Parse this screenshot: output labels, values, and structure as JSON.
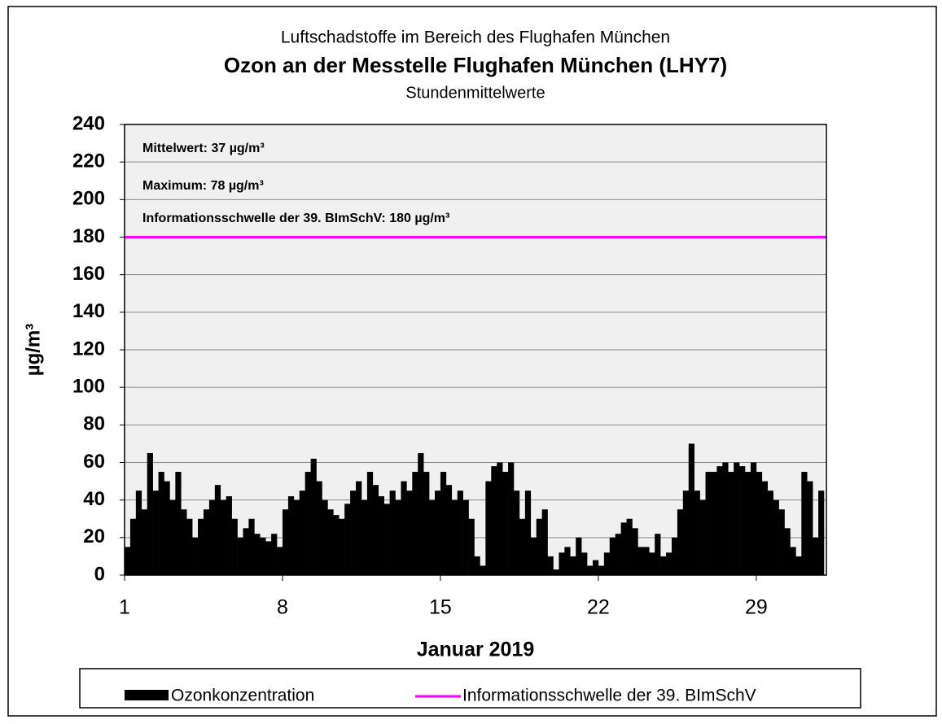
{
  "chart_data": {
    "type": "bar",
    "supertitle": "Luftschadstoffe im Bereich des Flughafen München",
    "title": "Ozon an der Messtelle Flughafen München (LHY7)",
    "subtitle": "Stundenmittelwerte",
    "y_label": "µg/m³",
    "x_label": "Januar 2019",
    "annotations": [
      "Mittelwert: 37 µg/m³",
      "Maximum: 78 µg/m³",
      "Informationsschwelle der 39. BImSchV: 180 µg/m³"
    ],
    "xlim": [
      1,
      32
    ],
    "xticks": [
      1,
      8,
      15,
      22,
      29
    ],
    "ylim": [
      0,
      240
    ],
    "yticks": [
      0,
      20,
      40,
      60,
      80,
      100,
      120,
      140,
      160,
      180,
      200,
      220,
      240
    ],
    "grid": true,
    "threshold": {
      "name": "Informationsschwelle der 39. BImSchV",
      "value": 180,
      "color": "#ff00ff"
    },
    "series": [
      {
        "name": "Ozonkonzentration",
        "color": "#000000",
        "x": [
          1,
          1.25,
          1.5,
          1.75,
          2,
          2.25,
          2.5,
          2.75,
          3,
          3.25,
          3.5,
          3.75,
          4,
          4.25,
          4.5,
          4.75,
          5,
          5.25,
          5.5,
          5.75,
          6,
          6.25,
          6.5,
          6.75,
          7,
          7.25,
          7.5,
          7.75,
          8,
          8.25,
          8.5,
          8.75,
          9,
          9.25,
          9.5,
          9.75,
          10,
          10.25,
          10.5,
          10.75,
          11,
          11.25,
          11.5,
          11.75,
          12,
          12.25,
          12.5,
          12.75,
          13,
          13.25,
          13.5,
          13.75,
          14,
          14.25,
          14.5,
          14.75,
          15,
          15.25,
          15.5,
          15.75,
          16,
          16.25,
          16.5,
          16.75,
          17,
          17.25,
          17.5,
          17.75,
          18,
          18.25,
          18.5,
          18.75,
          19,
          19.25,
          19.5,
          19.75,
          20,
          20.25,
          20.5,
          20.75,
          21,
          21.25,
          21.5,
          21.75,
          22,
          22.25,
          22.5,
          22.75,
          23,
          23.25,
          23.5,
          23.75,
          24,
          24.25,
          24.5,
          24.75,
          25,
          25.25,
          25.5,
          25.75,
          26,
          26.25,
          26.5,
          26.75,
          27,
          27.25,
          27.5,
          27.75,
          28,
          28.25,
          28.5,
          28.75,
          29,
          29.25,
          29.5,
          29.75,
          30,
          30.25,
          30.5,
          30.75,
          31,
          31.25,
          31.5,
          31.75
        ],
        "values": [
          15,
          30,
          45,
          35,
          65,
          45,
          55,
          50,
          40,
          55,
          35,
          30,
          20,
          30,
          35,
          40,
          48,
          40,
          42,
          30,
          20,
          25,
          30,
          22,
          20,
          18,
          22,
          15,
          35,
          42,
          40,
          45,
          55,
          62,
          50,
          40,
          35,
          32,
          30,
          38,
          45,
          50,
          40,
          55,
          48,
          42,
          38,
          45,
          40,
          50,
          45,
          55,
          65,
          55,
          40,
          45,
          55,
          48,
          40,
          45,
          40,
          30,
          10,
          5,
          50,
          58,
          60,
          55,
          60,
          45,
          30,
          45,
          20,
          30,
          35,
          10,
          3,
          12,
          15,
          10,
          20,
          12,
          5,
          8,
          5,
          12,
          20,
          22,
          28,
          30,
          25,
          15,
          15,
          12,
          22,
          10,
          12,
          20,
          35,
          45,
          70,
          45,
          40,
          55,
          55,
          58,
          60,
          55,
          60,
          58,
          55,
          60,
          55,
          50,
          45,
          40,
          35,
          25,
          15,
          10,
          55,
          50,
          20,
          45
        ]
      }
    ]
  }
}
